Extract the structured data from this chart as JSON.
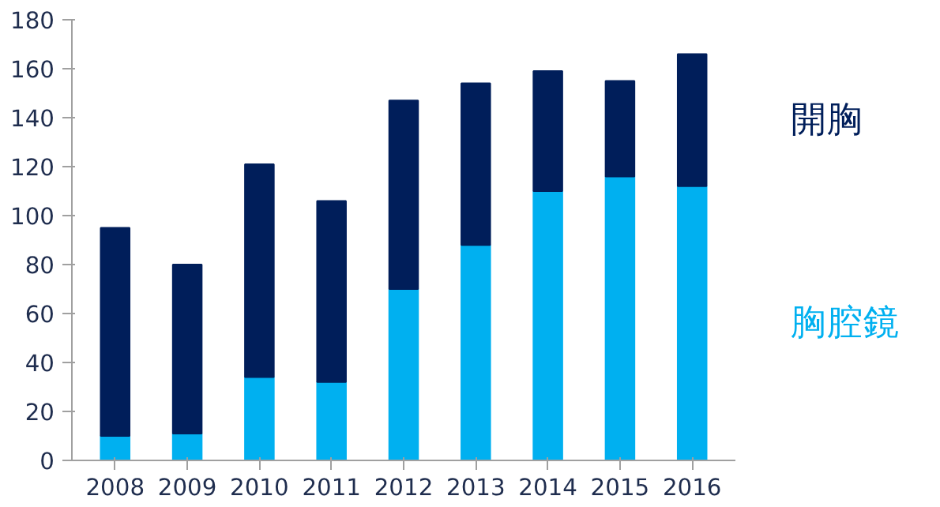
{
  "chart_data": {
    "type": "bar",
    "stacked": true,
    "categories": [
      "2008",
      "2009",
      "2010",
      "2011",
      "2012",
      "2013",
      "2014",
      "2015",
      "2016"
    ],
    "series": [
      {
        "name": "胸腔鏡",
        "color": "#00b0f0",
        "values": [
          10,
          11,
          34,
          32,
          70,
          88,
          110,
          116,
          112
        ]
      },
      {
        "name": "開胸",
        "color": "#001e5a",
        "values": [
          85,
          69,
          87,
          74,
          77,
          66,
          49,
          39,
          54
        ]
      }
    ],
    "ylim": [
      0,
      180
    ],
    "yticks": [
      0,
      20,
      40,
      60,
      80,
      100,
      120,
      140,
      160,
      180
    ],
    "grid": false,
    "legend": "right"
  }
}
